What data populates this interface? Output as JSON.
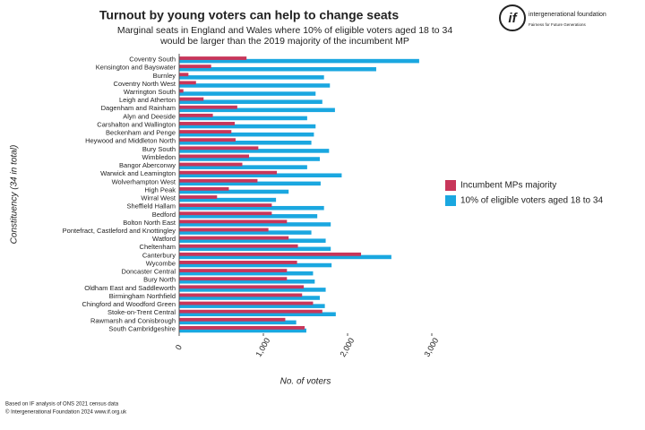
{
  "chart_data": {
    "type": "hbar",
    "title": "Turnout by young voters can help to change seats",
    "subtitle": [
      "Marginal seats in England and Wales where 10% of eligible voters aged 18 to 34",
      "would be larger than the 2019 majority of the incumbent MP"
    ],
    "xlabel": "No. of voters",
    "ylabel": "Constituency (34 in total)",
    "categories": [
      "Coventry South",
      "Kensington and Bayswater",
      "Burnley",
      "Coventry North West",
      "Warrington South",
      "Leigh and Atherton",
      "Dagenham and Rainham",
      "Alyn and Deeside",
      "Carshalton and Wallington",
      "Beckenham and Penge",
      "Heywood and Middleton North",
      "Bury South",
      "Wimbledon",
      "Bangor Aberconwy",
      "Warwick and Leamington",
      "Wolverhampton West",
      "High Peak",
      "Wirral West",
      "Sheffield Hallam",
      "Bedford",
      "Bolton North East",
      "Pontefract, Castleford and Knottingley",
      "Watford",
      "Cheltenham",
      "Canterbury",
      "Wycombe",
      "Doncaster Central",
      "Bury North",
      "Oldham East and Saddleworth",
      "Birmingham Northfield",
      "Chingford and Woodford Green",
      "Stoke-on-Trent Central",
      "Rawmarsh and Conisbrough",
      "South Cambridgeshire"
    ],
    "series": [
      {
        "name": "Incumbent MPs majority",
        "color": "#c8365a",
        "values": [
          800,
          380,
          110,
          200,
          50,
          290,
          690,
          400,
          660,
          620,
          670,
          940,
          830,
          750,
          1160,
          930,
          590,
          450,
          1100,
          1100,
          1280,
          1060,
          1300,
          1410,
          2160,
          1400,
          1280,
          1280,
          1480,
          1460,
          1590,
          1700,
          1260,
          1490
        ]
      },
      {
        "name": "10% of eligible voters aged 18 to 34",
        "color": "#1aa7e0",
        "values": [
          2850,
          2340,
          1720,
          1790,
          1620,
          1700,
          1850,
          1520,
          1620,
          1600,
          1570,
          1780,
          1670,
          1520,
          1930,
          1680,
          1300,
          1150,
          1720,
          1640,
          1800,
          1570,
          1740,
          1800,
          2520,
          1810,
          1590,
          1610,
          1740,
          1670,
          1730,
          1860,
          1390,
          1510
        ]
      }
    ],
    "xlim": [
      0,
      3000
    ],
    "xticks": [
      0,
      {
        "value": 1000,
        "label": "1,000"
      },
      {
        "value": 2000,
        "label": "2,000"
      },
      {
        "value": 3000,
        "label": "3,000"
      }
    ],
    "legend": "right",
    "notes": [
      "Based on IF analysis of ONS 2021 census data",
      "© Intergenerational Foundation 2024 www.if.org.uk"
    ],
    "logo": {
      "mark": "if",
      "name": "intergenerational foundation",
      "tagline": "Fairness for Future Generations"
    }
  }
}
